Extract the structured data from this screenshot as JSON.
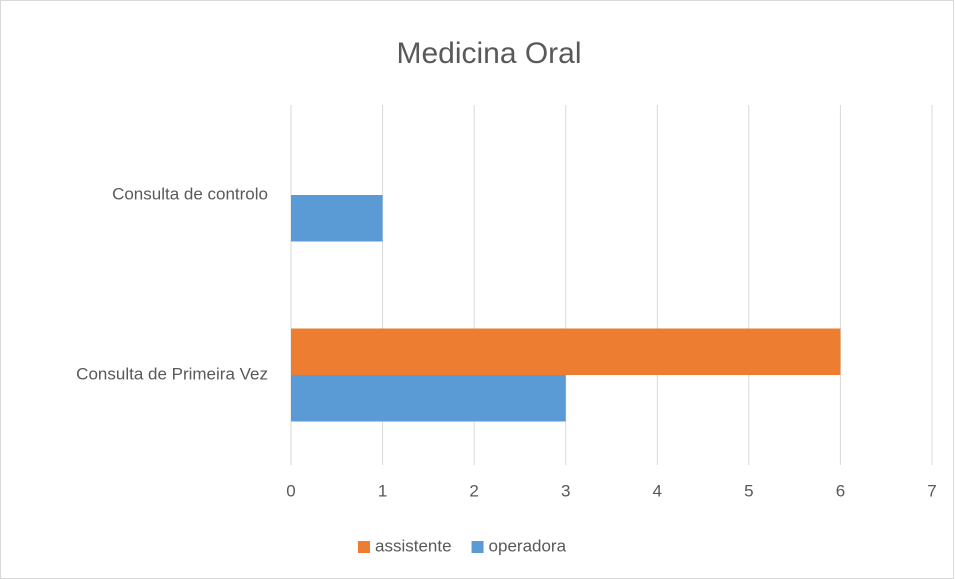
{
  "chart_data": {
    "type": "bar",
    "orientation": "horizontal",
    "title": "Medicina Oral",
    "categories": [
      "Consulta de Primeira Vez",
      "Consulta de controlo"
    ],
    "series": [
      {
        "name": "assistente",
        "color": "#ed7d31",
        "values": [
          6,
          null
        ]
      },
      {
        "name": "operadora",
        "color": "#5b9bd5",
        "values": [
          3,
          1
        ]
      }
    ],
    "xlim": [
      0,
      7
    ],
    "xticks": [
      0,
      1,
      2,
      3,
      4,
      5,
      6,
      7
    ],
    "grid": true,
    "legend": "bottom"
  }
}
